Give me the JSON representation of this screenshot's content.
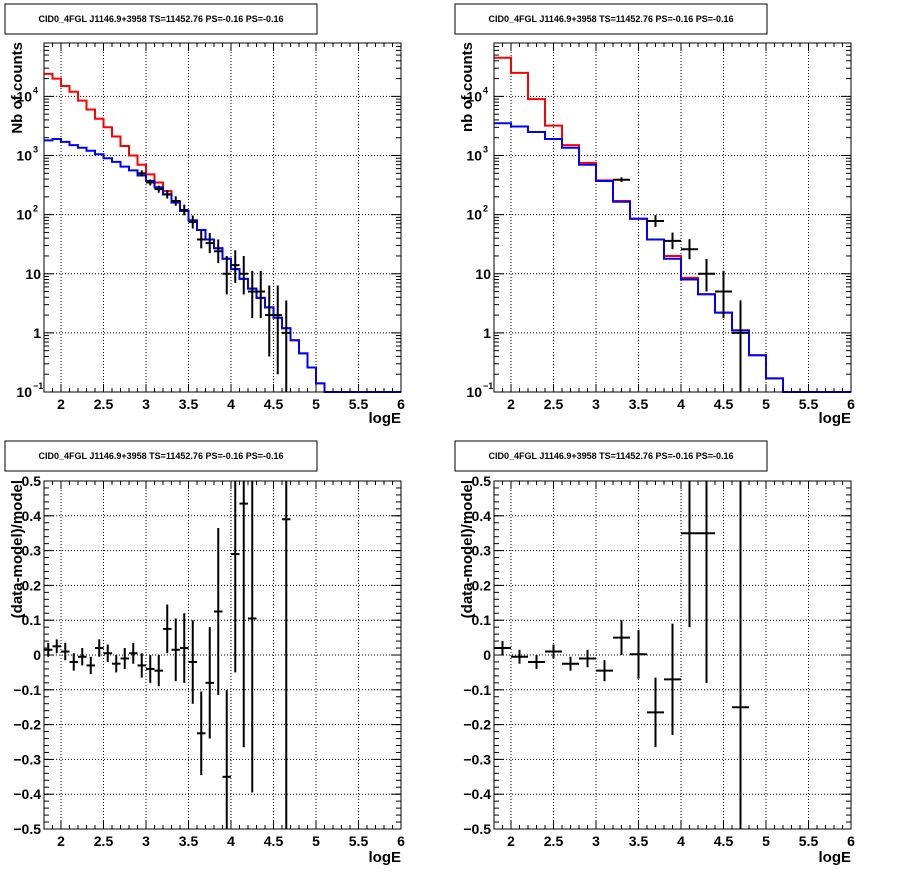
{
  "colors": {
    "red": "#ff0000",
    "blue": "#0000ff",
    "black": "#000000"
  },
  "chart_data": [
    {
      "type": "line",
      "panel": "top-left",
      "title": "CID0_4FGL J1146.9+3958 TS=11452.76 PS=-0.16 PS=-0.16",
      "xlabel": "logE",
      "ylabel": "Nb of counts",
      "xlim": [
        1.8,
        6.0
      ],
      "ylim": [
        0.1,
        80000
      ],
      "yscale": "log",
      "grid": true,
      "x_ticks": [
        "2",
        "2.5",
        "3",
        "3.5",
        "4",
        "4.5",
        "5",
        "5.5",
        "6"
      ],
      "y_ticks": [
        {
          "v": 0.1,
          "base": "10",
          "exp": "−1"
        },
        {
          "v": 1,
          "base": "1",
          "exp": ""
        },
        {
          "v": 10,
          "base": "10",
          "exp": ""
        },
        {
          "v": 100,
          "base": "10",
          "exp": "2"
        },
        {
          "v": 1000,
          "base": "10",
          "exp": "3"
        },
        {
          "v": 10000,
          "base": "10",
          "exp": "4"
        }
      ],
      "bin_edges": [
        1.8,
        1.9,
        2.0,
        2.1,
        2.2,
        2.3,
        2.4,
        2.5,
        2.6,
        2.7,
        2.8,
        2.9,
        3.0,
        3.1,
        3.2,
        3.3,
        3.4,
        3.5,
        3.6,
        3.7,
        3.8,
        3.9,
        4.0,
        4.1,
        4.2,
        4.3,
        4.4,
        4.5,
        4.6,
        4.7,
        4.8,
        4.9,
        5.0,
        5.1,
        5.2,
        5.3,
        5.4,
        5.5,
        5.6,
        5.7,
        5.8,
        5.9,
        6.0
      ],
      "series": [
        {
          "name": "",
          "color": "#ff0000",
          "values": [
            24000,
            20000,
            15000,
            12000,
            8500,
            6000,
            4200,
            3000,
            2100,
            1450,
            1000,
            700,
            480,
            350,
            250,
            170,
            115,
            80,
            55,
            38,
            27,
            18,
            12,
            8.2,
            5.6,
            3.9,
            2.7,
            1.8,
            1.2,
            0.75,
            0.45,
            0.26,
            0.14,
            0.1,
            0.1,
            0.1,
            0.1,
            0.1,
            0.1,
            0.1,
            0.1,
            0.1
          ]
        },
        {
          "name": "",
          "color": "#0000ff",
          "values": [
            1800,
            1900,
            1700,
            1500,
            1350,
            1200,
            1050,
            900,
            780,
            650,
            560,
            460,
            370,
            290,
            220,
            160,
            115,
            80,
            55,
            38,
            27,
            18,
            12,
            8.2,
            5.6,
            3.9,
            2.7,
            1.8,
            1.2,
            0.75,
            0.45,
            0.26,
            0.14,
            0.1,
            0.1,
            0.1,
            0.1,
            0.1,
            0.1,
            0.1,
            0.1,
            0.1
          ]
        }
      ],
      "points": [
        {
          "x": 2.95,
          "y": 500,
          "ex": 0.05,
          "elo": 0.05,
          "ehi": 0.05
        },
        {
          "x": 3.05,
          "y": 350,
          "ex": 0.05,
          "elo": 0.05,
          "ehi": 0.05
        },
        {
          "x": 3.15,
          "y": 270,
          "ex": 0.05,
          "elo": 0.06,
          "ehi": 0.06
        },
        {
          "x": 3.25,
          "y": 220,
          "ex": 0.05,
          "elo": 0.07,
          "ehi": 0.07
        },
        {
          "x": 3.35,
          "y": 170,
          "ex": 0.05,
          "elo": 0.08,
          "ehi": 0.08
        },
        {
          "x": 3.45,
          "y": 120,
          "ex": 0.05,
          "elo": 0.09,
          "ehi": 0.09
        },
        {
          "x": 3.55,
          "y": 75,
          "ex": 0.05,
          "elo": 0.11,
          "ehi": 0.11
        },
        {
          "x": 3.65,
          "y": 38,
          "ex": 0.05,
          "elo": 0.15,
          "ehi": 0.15
        },
        {
          "x": 3.75,
          "y": 33,
          "ex": 0.05,
          "elo": 0.17,
          "ehi": 0.17
        },
        {
          "x": 3.85,
          "y": 24,
          "ex": 0.05,
          "elo": 0.2,
          "ehi": 0.2
        },
        {
          "x": 3.95,
          "y": 10,
          "ex": 0.05,
          "elo": 0.35,
          "ehi": 0.3
        },
        {
          "x": 4.05,
          "y": 14,
          "ex": 0.05,
          "elo": 0.3,
          "ehi": 0.25
        },
        {
          "x": 4.15,
          "y": 10,
          "ex": 0.05,
          "elo": 0.35,
          "ehi": 0.3
        },
        {
          "x": 4.25,
          "y": 5,
          "ex": 0.05,
          "elo": 0.45,
          "ehi": 0.35
        },
        {
          "x": 4.35,
          "y": 5,
          "ex": 0.05,
          "elo": 0.45,
          "ehi": 0.35
        },
        {
          "x": 4.45,
          "y": 2,
          "ex": 0.05,
          "elo": 0.7,
          "ehi": 0.5
        },
        {
          "x": 4.55,
          "y": 2,
          "ex": 0.05,
          "elo": 1.0,
          "ehi": 0.5
        },
        {
          "x": 4.65,
          "y": 1,
          "ex": 0.05,
          "elo": 5.0,
          "ehi": 0.55
        }
      ]
    },
    {
      "type": "line",
      "panel": "top-right",
      "title": "CID0_4FGL J1146.9+3958 TS=11452.76 PS=-0.16 PS=-0.16",
      "xlabel": "logE",
      "ylabel": "nb of counts",
      "xlim": [
        1.8,
        6.0
      ],
      "ylim": [
        0.1,
        80000
      ],
      "yscale": "log",
      "grid": true,
      "x_ticks": [
        "2",
        "2.5",
        "3",
        "3.5",
        "4",
        "4.5",
        "5",
        "5.5",
        "6"
      ],
      "y_ticks": [
        {
          "v": 0.1,
          "base": "10",
          "exp": "−1"
        },
        {
          "v": 1,
          "base": "1",
          "exp": ""
        },
        {
          "v": 10,
          "base": "10",
          "exp": ""
        },
        {
          "v": 100,
          "base": "10",
          "exp": "2"
        },
        {
          "v": 1000,
          "base": "10",
          "exp": "3"
        },
        {
          "v": 10000,
          "base": "10",
          "exp": "4"
        }
      ],
      "bin_edges": [
        1.8,
        2.0,
        2.2,
        2.4,
        2.6,
        2.8,
        3.0,
        3.2,
        3.4,
        3.6,
        3.8,
        4.0,
        4.2,
        4.4,
        4.6,
        4.8,
        5.0,
        5.2,
        5.4,
        5.6,
        5.8,
        6.0
      ],
      "series": [
        {
          "name": "",
          "color": "#ff0000",
          "values": [
            45000,
            25000,
            9000,
            3200,
            1500,
            750,
            380,
            170,
            85,
            38,
            20,
            8.5,
            4.5,
            2.2,
            1.1,
            0.42,
            0.17,
            0.1,
            0.1,
            0.1,
            0.1
          ]
        },
        {
          "name": "",
          "color": "#0000ff",
          "values": [
            3500,
            3100,
            2500,
            1900,
            1350,
            700,
            370,
            165,
            85,
            38,
            18,
            8,
            4.5,
            2.2,
            1.1,
            0.42,
            0.17,
            0.1,
            0.1,
            0.1,
            0.1
          ]
        }
      ],
      "points": [
        {
          "x": 3.3,
          "y": 390,
          "ex": 0.1,
          "elo": 0.04,
          "ehi": 0.04
        },
        {
          "x": 3.7,
          "y": 78,
          "ex": 0.1,
          "elo": 0.1,
          "ehi": 0.1
        },
        {
          "x": 3.9,
          "y": 36,
          "ex": 0.1,
          "elo": 0.14,
          "ehi": 0.14
        },
        {
          "x": 4.1,
          "y": 26,
          "ex": 0.1,
          "elo": 0.17,
          "ehi": 0.17
        },
        {
          "x": 4.3,
          "y": 10,
          "ex": 0.1,
          "elo": 0.3,
          "ehi": 0.25
        },
        {
          "x": 4.5,
          "y": 5,
          "ex": 0.1,
          "elo": 0.45,
          "ehi": 0.35
        },
        {
          "x": 4.7,
          "y": 1,
          "ex": 0.1,
          "elo": 5.0,
          "ehi": 0.55
        }
      ]
    },
    {
      "type": "scatter",
      "panel": "bottom-left",
      "title": "CID0_4FGL J1146.9+3958 TS=11452.76 PS=-0.16 PS=-0.16",
      "xlabel": "logE",
      "ylabel": "(data-model)/model",
      "xlim": [
        1.8,
        6.0
      ],
      "ylim": [
        -0.5,
        0.5
      ],
      "yscale": "linear",
      "grid": true,
      "x_ticks": [
        "2",
        "2.5",
        "3",
        "3.5",
        "4",
        "4.5",
        "5",
        "5.5",
        "6"
      ],
      "y_ticks": [
        {
          "v": -0.5,
          "base": "−0.5",
          "exp": ""
        },
        {
          "v": -0.4,
          "base": "−0.4",
          "exp": ""
        },
        {
          "v": -0.3,
          "base": "−0.3",
          "exp": ""
        },
        {
          "v": -0.2,
          "base": "−0.2",
          "exp": ""
        },
        {
          "v": -0.1,
          "base": "−0.1",
          "exp": ""
        },
        {
          "v": 0,
          "base": "0",
          "exp": ""
        },
        {
          "v": 0.1,
          "base": "0.1",
          "exp": ""
        },
        {
          "v": 0.2,
          "base": "0.2",
          "exp": ""
        },
        {
          "v": 0.3,
          "base": "0.3",
          "exp": ""
        },
        {
          "v": 0.4,
          "base": "0.4",
          "exp": ""
        },
        {
          "v": 0.5,
          "base": "0.5",
          "exp": ""
        }
      ],
      "points": [
        {
          "x": 1.85,
          "y": 0.015,
          "ex": 0.05,
          "e": 0.02
        },
        {
          "x": 1.95,
          "y": 0.025,
          "ex": 0.05,
          "e": 0.02
        },
        {
          "x": 2.05,
          "y": 0.01,
          "ex": 0.05,
          "e": 0.025
        },
        {
          "x": 2.15,
          "y": -0.02,
          "ex": 0.05,
          "e": 0.025
        },
        {
          "x": 2.25,
          "y": -0.005,
          "ex": 0.05,
          "e": 0.025
        },
        {
          "x": 2.35,
          "y": -0.03,
          "ex": 0.05,
          "e": 0.025
        },
        {
          "x": 2.45,
          "y": 0.02,
          "ex": 0.05,
          "e": 0.025
        },
        {
          "x": 2.55,
          "y": 0.005,
          "ex": 0.05,
          "e": 0.025
        },
        {
          "x": 2.65,
          "y": -0.025,
          "ex": 0.05,
          "e": 0.025
        },
        {
          "x": 2.75,
          "y": -0.01,
          "ex": 0.05,
          "e": 0.03
        },
        {
          "x": 2.85,
          "y": 0.005,
          "ex": 0.05,
          "e": 0.03
        },
        {
          "x": 2.95,
          "y": -0.03,
          "ex": 0.05,
          "e": 0.035
        },
        {
          "x": 3.05,
          "y": -0.04,
          "ex": 0.05,
          "e": 0.04
        },
        {
          "x": 3.15,
          "y": -0.045,
          "ex": 0.05,
          "e": 0.045
        },
        {
          "x": 3.25,
          "y": 0.075,
          "ex": 0.05,
          "e": 0.07
        },
        {
          "x": 3.35,
          "y": 0.015,
          "ex": 0.05,
          "e": 0.09
        },
        {
          "x": 3.45,
          "y": 0.02,
          "ex": 0.05,
          "e": 0.1
        },
        {
          "x": 3.55,
          "y": -0.02,
          "ex": 0.05,
          "e": 0.12
        },
        {
          "x": 3.65,
          "y": -0.225,
          "ex": 0.05,
          "e": 0.12
        },
        {
          "x": 3.75,
          "y": -0.08,
          "ex": 0.05,
          "e": 0.16
        },
        {
          "x": 3.85,
          "y": 0.125,
          "ex": 0.05,
          "e": 0.24
        },
        {
          "x": 3.95,
          "y": -0.35,
          "ex": 0.05,
          "e": 0.25
        },
        {
          "x": 4.05,
          "y": 0.29,
          "ex": 0.05,
          "e": 0.34
        },
        {
          "x": 4.15,
          "y": 0.435,
          "ex": 0.05,
          "e": 0.7
        },
        {
          "x": 4.25,
          "y": 0.105,
          "ex": 0.05,
          "e": 0.5
        },
        {
          "x": 4.65,
          "y": 0.39,
          "ex": 0.05,
          "e": 1.5
        }
      ]
    },
    {
      "type": "scatter",
      "panel": "bottom-right",
      "title": "CID0_4FGL J1146.9+3958 TS=11452.76 PS=-0.16 PS=-0.16",
      "xlabel": "logE",
      "ylabel": "(data-model)/model",
      "xlim": [
        1.8,
        6.0
      ],
      "ylim": [
        -0.5,
        0.5
      ],
      "yscale": "linear",
      "grid": true,
      "x_ticks": [
        "2",
        "2.5",
        "3",
        "3.5",
        "4",
        "4.5",
        "5",
        "5.5",
        "6"
      ],
      "y_ticks": [
        {
          "v": -0.5,
          "base": "−0.5",
          "exp": ""
        },
        {
          "v": -0.4,
          "base": "−0.4",
          "exp": ""
        },
        {
          "v": -0.3,
          "base": "−0.3",
          "exp": ""
        },
        {
          "v": -0.2,
          "base": "−0.2",
          "exp": ""
        },
        {
          "v": -0.1,
          "base": "−0.1",
          "exp": ""
        },
        {
          "v": 0,
          "base": "0",
          "exp": ""
        },
        {
          "v": 0.1,
          "base": "0.1",
          "exp": ""
        },
        {
          "v": 0.2,
          "base": "0.2",
          "exp": ""
        },
        {
          "v": 0.3,
          "base": "0.3",
          "exp": ""
        },
        {
          "v": 0.4,
          "base": "0.4",
          "exp": ""
        },
        {
          "v": 0.5,
          "base": "0.5",
          "exp": ""
        }
      ],
      "points": [
        {
          "x": 1.9,
          "y": 0.02,
          "ex": 0.1,
          "e": 0.02
        },
        {
          "x": 2.1,
          "y": -0.005,
          "ex": 0.1,
          "e": 0.02
        },
        {
          "x": 2.3,
          "y": -0.02,
          "ex": 0.1,
          "e": 0.02
        },
        {
          "x": 2.5,
          "y": 0.01,
          "ex": 0.1,
          "e": 0.02
        },
        {
          "x": 2.7,
          "y": -0.025,
          "ex": 0.1,
          "e": 0.02
        },
        {
          "x": 2.9,
          "y": -0.01,
          "ex": 0.1,
          "e": 0.025
        },
        {
          "x": 3.1,
          "y": -0.045,
          "ex": 0.1,
          "e": 0.03
        },
        {
          "x": 3.3,
          "y": 0.05,
          "ex": 0.1,
          "e": 0.05
        },
        {
          "x": 3.5,
          "y": 0.002,
          "ex": 0.1,
          "e": 0.07
        },
        {
          "x": 3.7,
          "y": -0.165,
          "ex": 0.1,
          "e": 0.1
        },
        {
          "x": 3.9,
          "y": -0.07,
          "ex": 0.1,
          "e": 0.16
        },
        {
          "x": 4.1,
          "y": 0.35,
          "ex": 0.1,
          "e": 0.27
        },
        {
          "x": 4.3,
          "y": 0.35,
          "ex": 0.1,
          "e": 0.43
        },
        {
          "x": 4.7,
          "y": -0.15,
          "ex": 0.1,
          "e": 1.0
        }
      ]
    }
  ]
}
